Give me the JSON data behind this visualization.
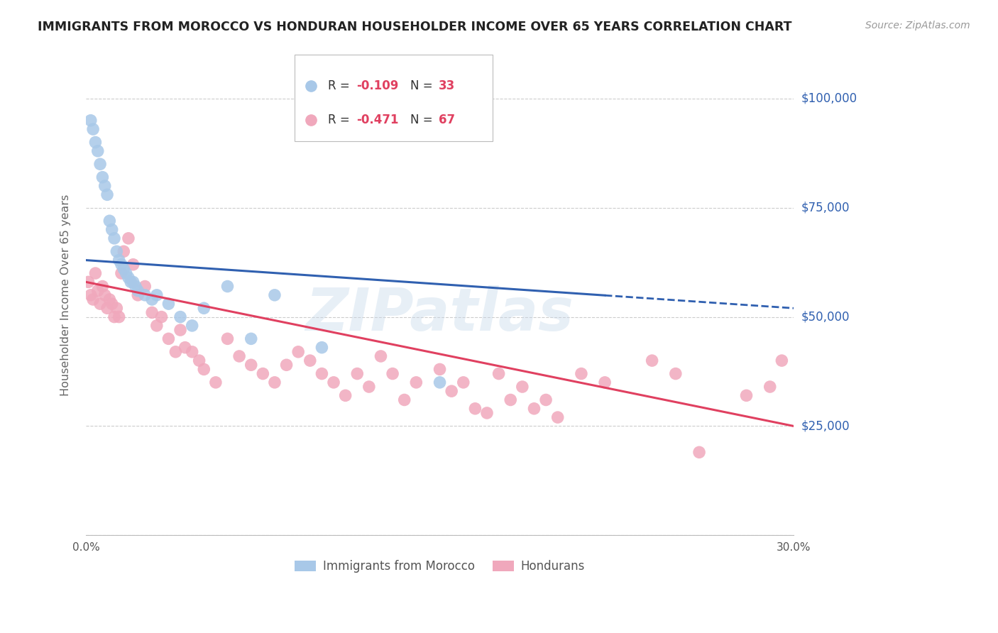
{
  "title": "IMMIGRANTS FROM MOROCCO VS HONDURAN HOUSEHOLDER INCOME OVER 65 YEARS CORRELATION CHART",
  "source": "Source: ZipAtlas.com",
  "ylabel": "Householder Income Over 65 years",
  "watermark": "ZIPatlas",
  "xlim": [
    0.0,
    0.3
  ],
  "ylim": [
    0,
    110000
  ],
  "yticks": [
    0,
    25000,
    50000,
    75000,
    100000
  ],
  "ytick_labels_right": [
    "",
    "$25,000",
    "$50,000",
    "$75,000",
    "$100,000"
  ],
  "xtick_positions": [
    0.0,
    0.05,
    0.1,
    0.15,
    0.2,
    0.25,
    0.3
  ],
  "xtick_labels": [
    "0.0%",
    "",
    "",
    "",
    "",
    "",
    "30.0%"
  ],
  "grid_color": "#cccccc",
  "bg_color": "#ffffff",
  "morocco_color": "#a8c8e8",
  "honduras_color": "#f0a8bc",
  "morocco_line_color": "#3060b0",
  "honduras_line_color": "#e04060",
  "r_val_color": "#e04060",
  "n_val_color": "#e04060",
  "legend_label_morocco": "Immigrants from Morocco",
  "legend_label_honduras": "Hondurans",
  "morocco_x": [
    0.002,
    0.003,
    0.004,
    0.005,
    0.006,
    0.007,
    0.008,
    0.009,
    0.01,
    0.011,
    0.012,
    0.013,
    0.014,
    0.015,
    0.016,
    0.017,
    0.018,
    0.019,
    0.02,
    0.021,
    0.022,
    0.025,
    0.028,
    0.03,
    0.035,
    0.04,
    0.045,
    0.05,
    0.06,
    0.07,
    0.08,
    0.1,
    0.15
  ],
  "morocco_y": [
    95000,
    93000,
    90000,
    88000,
    85000,
    82000,
    80000,
    78000,
    72000,
    70000,
    68000,
    65000,
    63000,
    62000,
    61000,
    60000,
    59000,
    58000,
    58000,
    57000,
    56000,
    55000,
    54000,
    55000,
    53000,
    50000,
    48000,
    52000,
    57000,
    45000,
    55000,
    43000,
    35000
  ],
  "honduras_x": [
    0.001,
    0.002,
    0.003,
    0.004,
    0.005,
    0.006,
    0.007,
    0.008,
    0.009,
    0.01,
    0.011,
    0.012,
    0.013,
    0.014,
    0.015,
    0.016,
    0.018,
    0.02,
    0.022,
    0.025,
    0.028,
    0.03,
    0.032,
    0.035,
    0.038,
    0.04,
    0.042,
    0.045,
    0.048,
    0.05,
    0.055,
    0.06,
    0.065,
    0.07,
    0.075,
    0.08,
    0.085,
    0.09,
    0.095,
    0.1,
    0.105,
    0.11,
    0.115,
    0.12,
    0.125,
    0.13,
    0.135,
    0.14,
    0.15,
    0.155,
    0.16,
    0.165,
    0.17,
    0.175,
    0.18,
    0.185,
    0.19,
    0.195,
    0.2,
    0.21,
    0.22,
    0.24,
    0.25,
    0.26,
    0.28,
    0.29,
    0.295
  ],
  "honduras_y": [
    58000,
    55000,
    54000,
    60000,
    56000,
    53000,
    57000,
    55000,
    52000,
    54000,
    53000,
    50000,
    52000,
    50000,
    60000,
    65000,
    68000,
    62000,
    55000,
    57000,
    51000,
    48000,
    50000,
    45000,
    42000,
    47000,
    43000,
    42000,
    40000,
    38000,
    35000,
    45000,
    41000,
    39000,
    37000,
    35000,
    39000,
    42000,
    40000,
    37000,
    35000,
    32000,
    37000,
    34000,
    41000,
    37000,
    31000,
    35000,
    38000,
    33000,
    35000,
    29000,
    28000,
    37000,
    31000,
    34000,
    29000,
    31000,
    27000,
    37000,
    35000,
    40000,
    37000,
    19000,
    32000,
    34000,
    40000
  ],
  "morocco_line_x0": 0.0,
  "morocco_line_y0": 63000,
  "morocco_line_x1": 0.3,
  "morocco_line_y1": 52000,
  "morocco_line_solid_end": 0.22,
  "honduras_line_x0": 0.0,
  "honduras_line_y0": 58000,
  "honduras_line_x1": 0.3,
  "honduras_line_y1": 25000
}
